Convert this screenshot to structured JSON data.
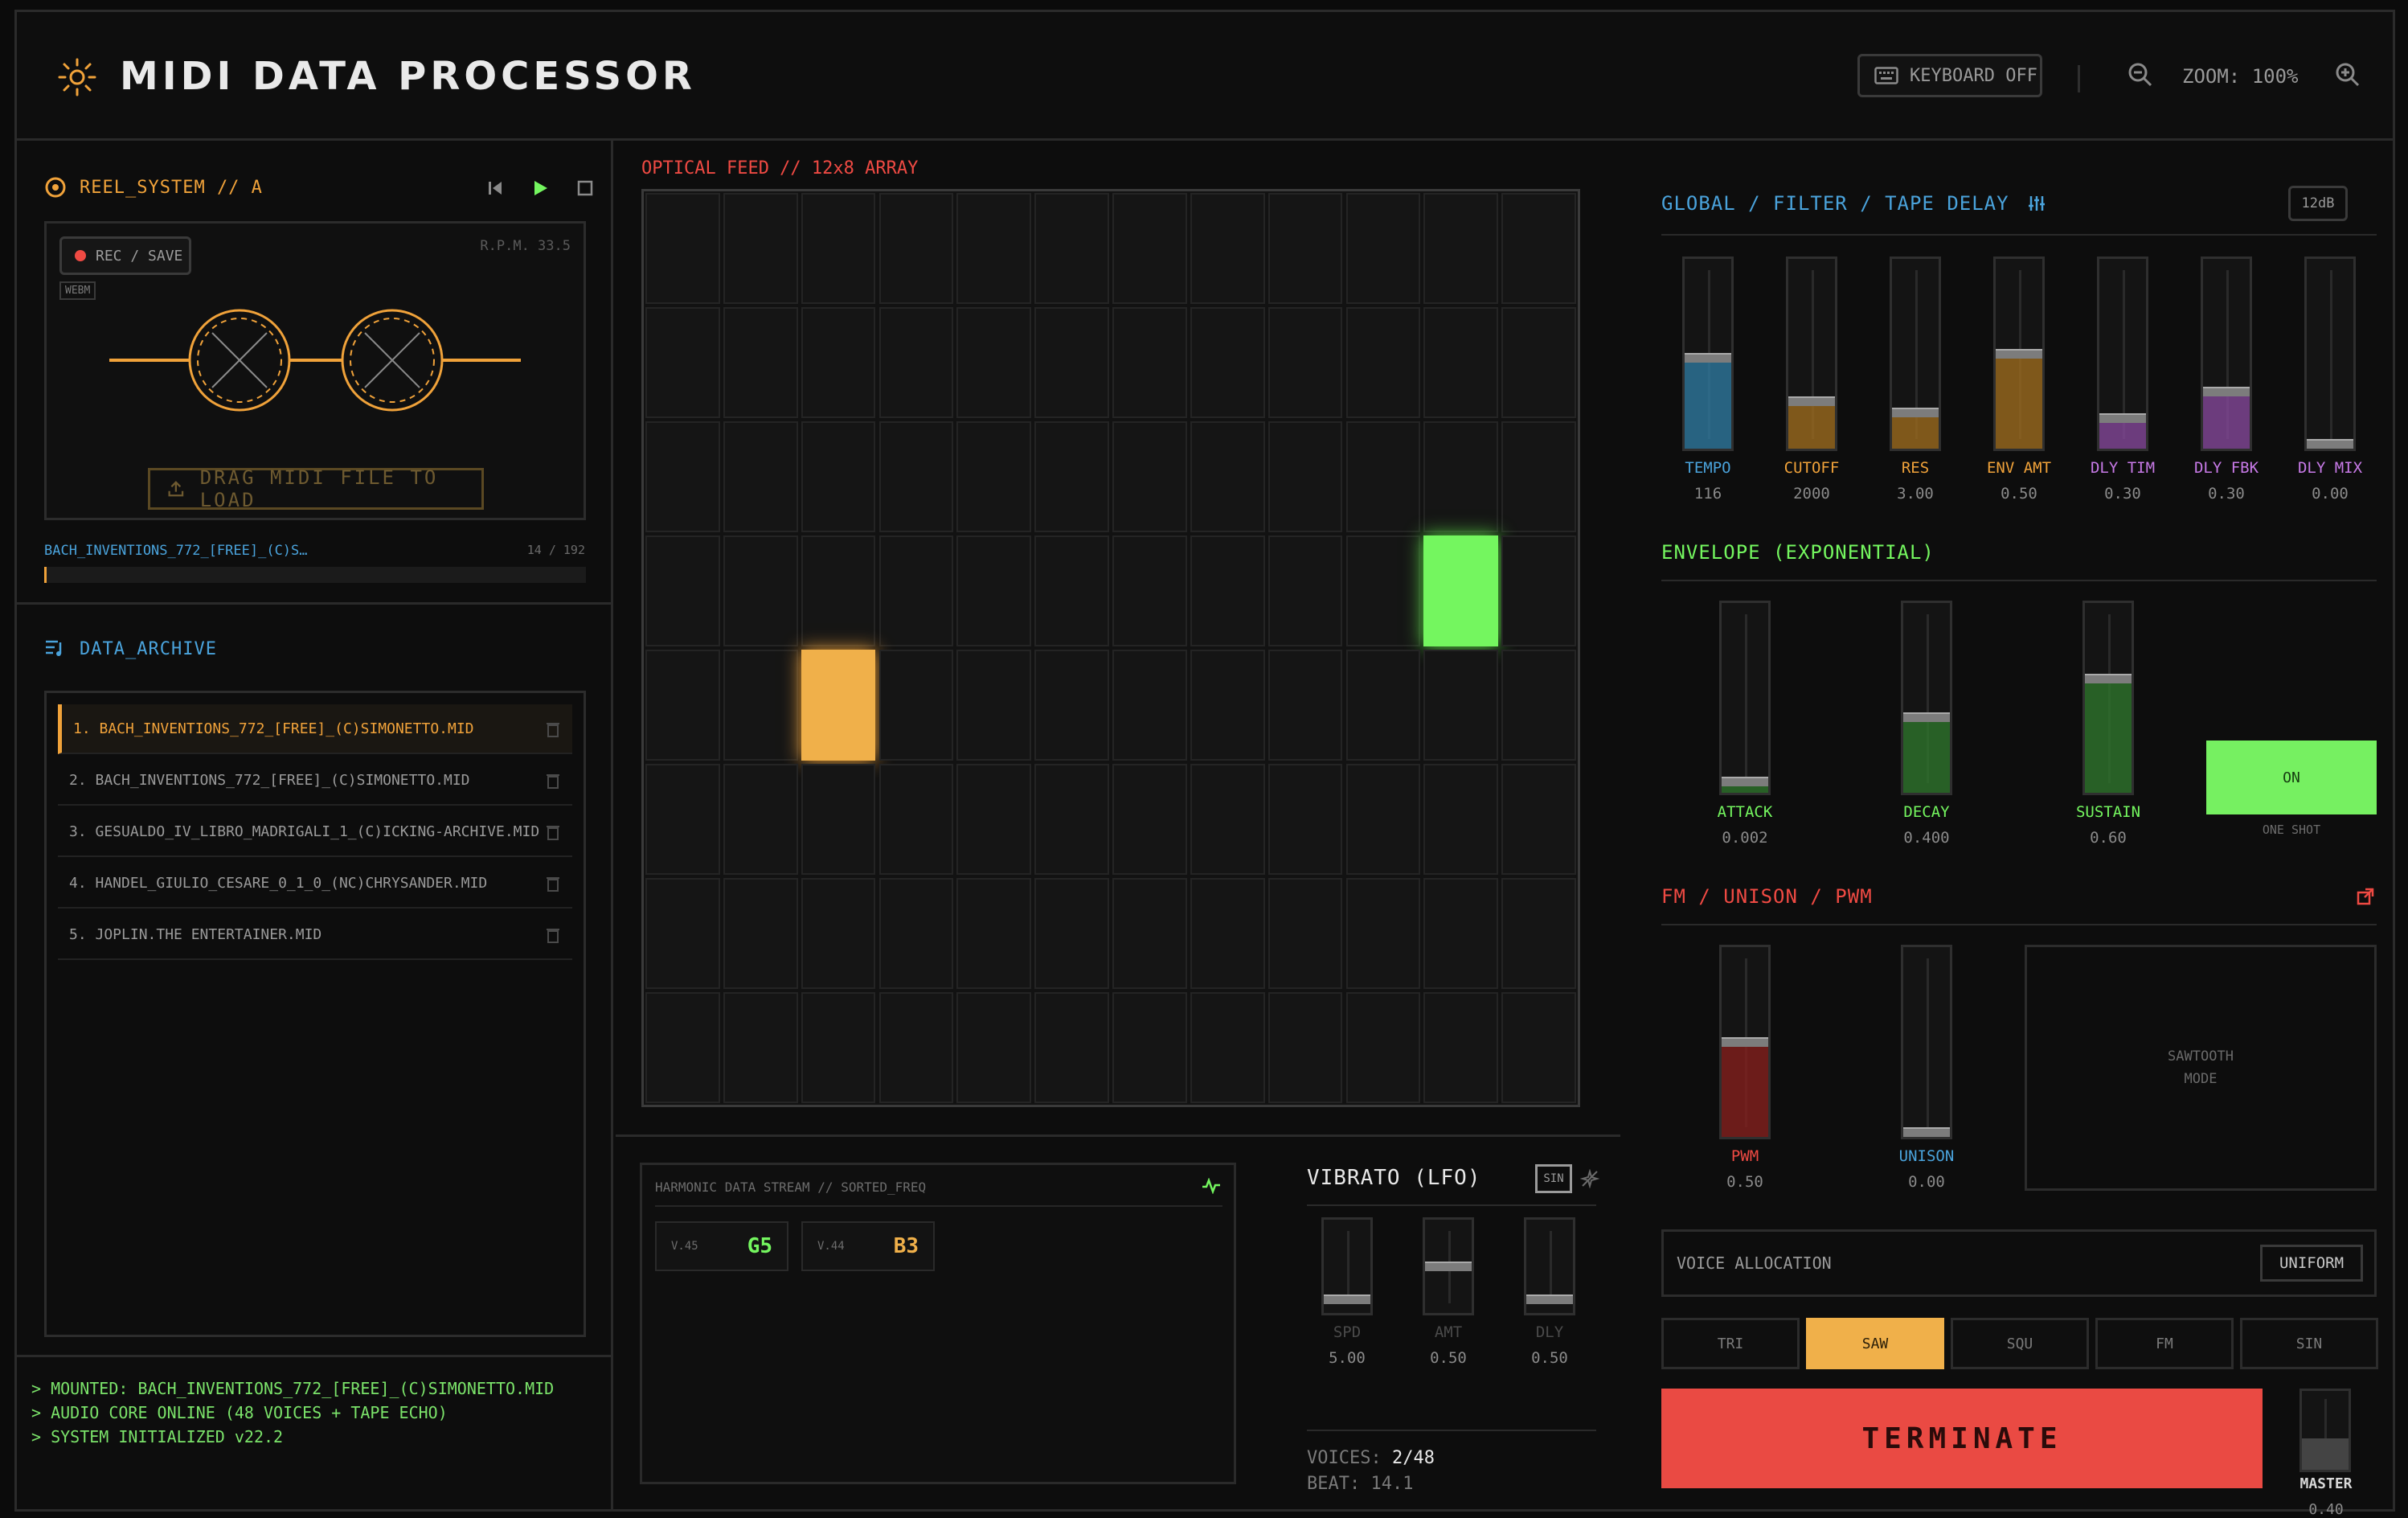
{
  "header": {
    "title": "MIDI DATA PROCESSOR",
    "keyboard_label": "KEYBOARD OFF",
    "zoom_label": "ZOOM: 100%"
  },
  "reel": {
    "title": "REEL_SYSTEM // A",
    "rec_label": "REC / SAVE",
    "format_tag": "WEBM",
    "rpm": "R.P.M. 33.5",
    "drag_label": "DRAG MIDI FILE TO LOAD",
    "track_name": "BACH_INVENTIONS_772_[FREE]_(C)S…",
    "track_count": "14 / 192",
    "progress": 0.005
  },
  "archive": {
    "title": "DATA_ARCHIVE",
    "items": [
      "1. BACH_INVENTIONS_772_[FREE]_(C)SIMONETTO.MID",
      "2. BACH_INVENTIONS_772_[FREE]_(C)SIMONETTO.MID",
      "3. GESUALDO_IV_LIBRO_MADRIGALI_1_(C)ICKING-ARCHIVE.MID",
      "4. HANDEL_GIULIO_CESARE_0_1_0_(NC)CHRYSANDER.MID",
      "5. JOPLIN.THE ENTERTAINER.MID"
    ]
  },
  "console": {
    "lines": [
      "> MOUNTED: BACH_INVENTIONS_772_[FREE]_(C)SIMONETTO.MID",
      "> AUDIO CORE ONLINE (48 VOICES + TAPE ECHO)",
      "> SYSTEM INITIALIZED v22.2"
    ]
  },
  "feed": {
    "title": "OPTICAL FEED // 12x8 ARRAY",
    "active_cells": [
      {
        "row": 4,
        "col": 2,
        "color": "orange"
      },
      {
        "row": 3,
        "col": 10,
        "color": "green"
      }
    ]
  },
  "harmonic": {
    "title": "HARMONIC DATA STREAM // SORTED_FREQ",
    "notes": [
      {
        "v": "V.45",
        "note": "G5",
        "color": "#74f65f"
      },
      {
        "v": "V.44",
        "note": "B3",
        "color": "#f0b04a"
      }
    ]
  },
  "vibrato": {
    "title": "VIBRATO (LFO)",
    "wave_tag": "SIN",
    "sliders": [
      {
        "label": "SPD",
        "value": "5.00",
        "level": 0.15
      },
      {
        "label": "AMT",
        "value": "0.50",
        "level": 0.5
      },
      {
        "label": "DLY",
        "value": "0.50",
        "level": 0.15
      }
    ],
    "voices_label": "VOICES:",
    "voices_value": "2/48",
    "beat": "BEAT: 14.1"
  },
  "global": {
    "title": "GLOBAL / FILTER / TAPE DELAY",
    "db_label": "12dB",
    "sliders": [
      {
        "label": "TEMPO",
        "value": "116",
        "level": 0.48,
        "color": "#2f7da6"
      },
      {
        "label": "CUTOFF",
        "value": "2000",
        "level": 0.25,
        "color": "#a36f1e"
      },
      {
        "label": "RES",
        "value": "3.00",
        "level": 0.19,
        "color": "#a36f1e"
      },
      {
        "label": "ENV AMT",
        "value": "0.50",
        "level": 0.5,
        "color": "#a36f1e"
      },
      {
        "label": "DLY TIM",
        "value": "0.30",
        "level": 0.16,
        "color": "#8a4aa0"
      },
      {
        "label": "DLY FBK",
        "value": "0.30",
        "level": 0.3,
        "color": "#8a4aa0"
      },
      {
        "label": "DLY MIX",
        "value": "0.00",
        "level": 0.0,
        "color": "#8a4aa0"
      }
    ],
    "label_colors": [
      "#4aa3dc",
      "#f0a23a",
      "#f0a23a",
      "#f0a23a",
      "#c87ae8",
      "#c87ae8",
      "#c87ae8"
    ]
  },
  "envelope": {
    "title": "ENVELOPE (EXPONENTIAL)",
    "sliders": [
      {
        "label": "ATTACK",
        "value": "0.002",
        "level": 0.06
      },
      {
        "label": "DECAY",
        "value": "0.400",
        "level": 0.4
      },
      {
        "label": "SUSTAIN",
        "value": "0.60",
        "level": 0.6
      }
    ],
    "on_label": "ON",
    "one_shot_label": "ONE SHOT"
  },
  "fm": {
    "title": "FM / UNISON / PWM",
    "sliders": [
      {
        "label": "PWM",
        "value": "0.50",
        "level": 0.5,
        "color": "#8a1f1c",
        "label_color": "#ef4a43"
      },
      {
        "label": "UNISON",
        "value": "0.00",
        "level": 0.0,
        "color": "#2f7da6",
        "label_color": "#4aa3dc"
      }
    ],
    "mode_line1": "SAWTOOTH",
    "mode_line2": "MODE"
  },
  "voice_alloc": {
    "label": "VOICE ALLOCATION",
    "mode": "UNIFORM"
  },
  "waves": [
    "TRI",
    "SAW",
    "SQU",
    "FM",
    "SIN"
  ],
  "active_wave": 1,
  "terminate_label": "TERMINATE",
  "master": {
    "label": "MASTER",
    "value": "0.40",
    "level": 0.4
  },
  "colors": {
    "accent_orange": "#f0a23a",
    "accent_green": "#74f65f",
    "accent_red": "#ea4a43",
    "accent_blue": "#4aa3dc"
  }
}
